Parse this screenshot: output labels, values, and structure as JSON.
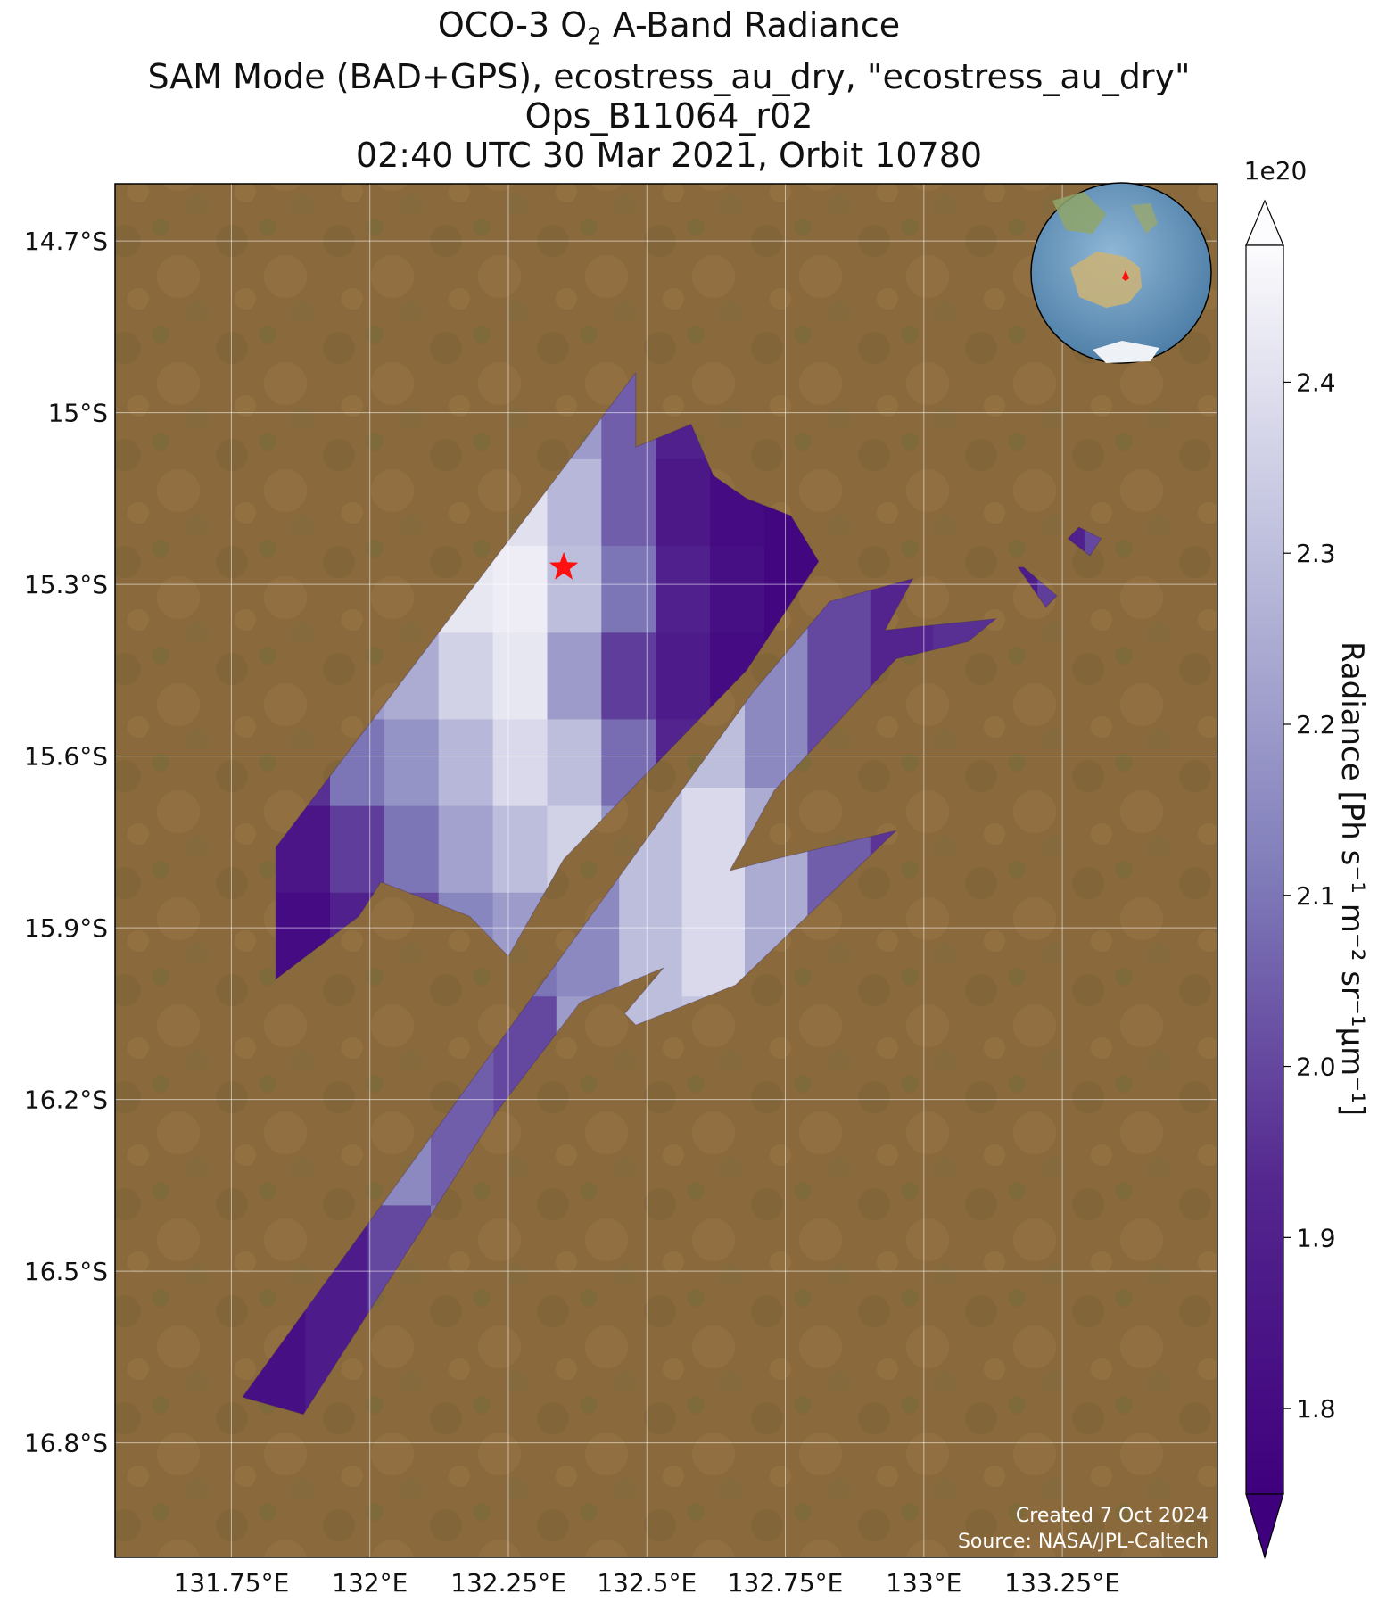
{
  "title": {
    "line1_prefix": "OCO-3 O",
    "line1_sub": "2",
    "line1_suffix": " A-Band Radiance",
    "line2": "SAM Mode (BAD+GPS), ecostress_au_dry, \"ecostress_au_dry\"",
    "line3": "Ops_B11064_r02",
    "line4": "02:40 UTC 30 Mar 2021, Orbit 10780"
  },
  "credits": {
    "created": "Created 7 Oct 2024",
    "source": "Source: NASA/JPL-Caltech"
  },
  "colors": {
    "land": "#8a6a3c",
    "cmap_low": "#3f007d",
    "cmap_mid": "#807dba",
    "cmap_high": "#fcfbfd",
    "star": "#ff1010"
  },
  "chart_data": {
    "type": "heatmap",
    "map_projection": "lon/lat",
    "xlim": [
      131.54,
      133.53
    ],
    "ylim": [
      -17.0,
      -14.6
    ],
    "x_ticks": [
      131.75,
      132.0,
      132.25,
      132.5,
      132.75,
      133.0,
      133.25
    ],
    "x_tick_labels": [
      "131.75°E",
      "132°E",
      "132.25°E",
      "132.5°E",
      "132.75°E",
      "133°E",
      "133.25°E"
    ],
    "y_ticks": [
      -14.7,
      -15.0,
      -15.3,
      -15.6,
      -15.9,
      -16.2,
      -16.5,
      -16.8
    ],
    "y_tick_labels": [
      "14.7°S",
      "15°S",
      "15.3°S",
      "15.6°S",
      "15.9°S",
      "16.2°S",
      "16.5°S",
      "16.8°S"
    ],
    "grid": true,
    "colorbar": {
      "label": "Radiance [Ph s⁻¹ m⁻² sr⁻¹µm⁻¹]",
      "exponent": "1e20",
      "vmin": 1.75,
      "vmax": 2.48,
      "ticks": [
        1.8,
        1.9,
        2.0,
        2.1,
        2.2,
        2.3,
        2.4
      ],
      "tick_labels": [
        "1.8",
        "1.9",
        "2.0",
        "2.1",
        "2.2",
        "2.3",
        "2.4"
      ],
      "extend": "both"
    },
    "target": {
      "lon": 132.35,
      "lat": -15.27,
      "marker": "star"
    },
    "swaths": [
      {
        "name": "upper",
        "polygon": [
          [
            131.83,
            -15.76
          ],
          [
            132.48,
            -14.93
          ],
          [
            132.48,
            -15.06
          ],
          [
            132.58,
            -15.02
          ],
          [
            132.62,
            -15.11
          ],
          [
            132.68,
            -15.15
          ],
          [
            132.76,
            -15.18
          ],
          [
            132.81,
            -15.26
          ],
          [
            132.68,
            -15.45
          ],
          [
            132.35,
            -15.78
          ],
          [
            132.25,
            -15.95
          ],
          [
            132.18,
            -15.88
          ],
          [
            132.02,
            -15.82
          ],
          [
            131.98,
            -15.88
          ],
          [
            131.83,
            -15.99
          ]
        ],
        "values": [
          [
            2.25,
            2.32,
            2.42,
            2.44,
            2.36,
            2.2,
            2.05,
            1.9,
            1.82,
            1.8
          ],
          [
            2.3,
            2.38,
            2.4,
            2.44,
            2.4,
            2.28,
            2.05,
            1.86,
            1.8,
            1.78
          ],
          [
            2.1,
            2.3,
            2.36,
            2.42,
            2.44,
            2.3,
            2.1,
            1.9,
            1.82,
            1.78
          ],
          [
            2.05,
            2.2,
            2.25,
            2.36,
            2.42,
            2.2,
            1.98,
            1.88,
            1.8,
            1.78
          ],
          [
            1.95,
            2.1,
            2.18,
            2.28,
            2.38,
            2.3,
            2.08,
            1.92,
            1.84,
            1.78
          ],
          [
            1.85,
            1.98,
            2.1,
            2.22,
            2.3,
            2.36,
            2.18,
            1.95,
            1.86,
            1.78
          ],
          [
            1.8,
            1.9,
            2.0,
            2.14,
            2.2,
            2.28,
            2.18,
            2.02,
            1.88,
            1.8
          ]
        ]
      },
      {
        "name": "lower",
        "polygon": [
          [
            131.77,
            -16.72
          ],
          [
            132.69,
            -15.49
          ],
          [
            132.83,
            -15.33
          ],
          [
            132.98,
            -15.29
          ],
          [
            132.93,
            -15.38
          ],
          [
            133.13,
            -15.36
          ],
          [
            133.08,
            -15.4
          ],
          [
            132.95,
            -15.43
          ],
          [
            132.73,
            -15.66
          ],
          [
            132.65,
            -15.8
          ],
          [
            132.73,
            -15.78
          ],
          [
            132.95,
            -15.73
          ],
          [
            132.66,
            -16.0
          ],
          [
            132.48,
            -16.07
          ],
          [
            132.46,
            -16.05
          ],
          [
            132.53,
            -15.97
          ],
          [
            132.38,
            -16.03
          ],
          [
            132.23,
            -16.22
          ],
          [
            131.88,
            -16.75
          ]
        ],
        "values": [
          [
            1.85,
            1.88,
            1.95,
            2.0,
            2.05,
            2.1,
            2.25,
            2.3,
            2.15,
            2.0,
            1.92,
            1.95
          ],
          [
            1.85,
            1.9,
            1.98,
            2.05,
            2.1,
            2.15,
            2.3,
            2.38,
            2.25,
            2.05,
            1.96,
            1.92
          ],
          [
            1.84,
            1.92,
            2.15,
            2.05,
            2.0,
            2.2,
            2.3,
            2.32,
            2.28,
            2.1,
            1.98,
            1.94
          ],
          [
            1.82,
            1.88,
            2.0,
            2.1,
            2.02,
            2.12,
            2.25,
            2.3,
            2.34,
            2.2,
            2.0,
            1.96
          ]
        ]
      },
      {
        "name": "east fragment",
        "polygon": [
          [
            133.28,
            -15.2
          ],
          [
            133.32,
            -15.22
          ],
          [
            133.3,
            -15.25
          ],
          [
            133.26,
            -15.22
          ]
        ],
        "values": [
          [
            1.9,
            2.0
          ]
        ]
      },
      {
        "name": "east fragment 2",
        "polygon": [
          [
            133.17,
            -15.27
          ],
          [
            133.18,
            -15.27
          ],
          [
            133.24,
            -15.32
          ],
          [
            133.22,
            -15.34
          ]
        ],
        "values": [
          [
            1.88,
            1.98
          ]
        ]
      }
    ]
  }
}
